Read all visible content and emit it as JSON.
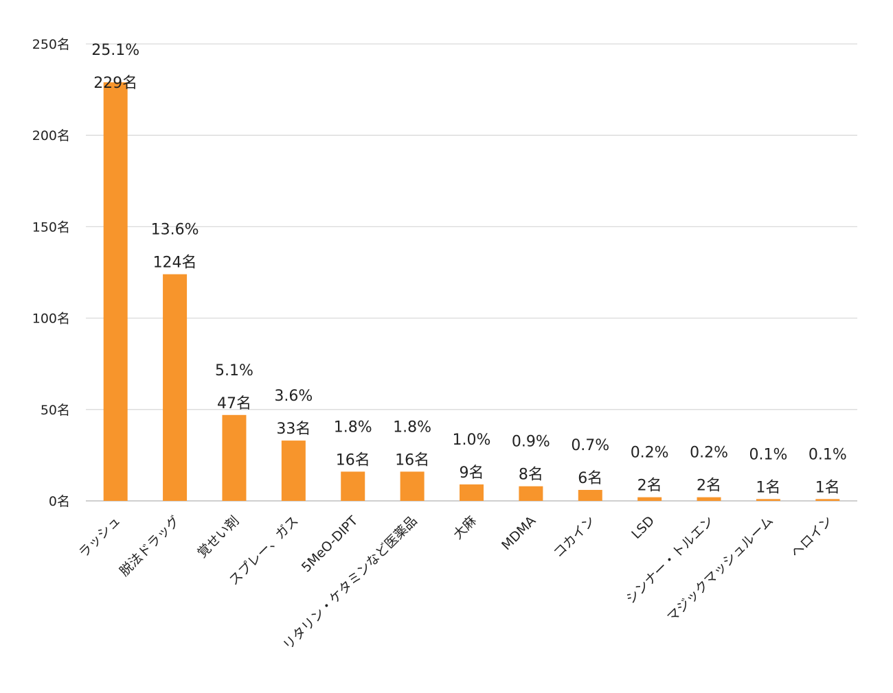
{
  "chart_data": {
    "type": "bar",
    "categories": [
      "ラッシュ",
      "脱法ドラッグ",
      "覚せい剤",
      "スプレー、ガス",
      "5MeO-DIPT",
      "リタリン・ケタミンなど医薬品",
      "大麻",
      "MDMA",
      "コカイン",
      "LSD",
      "シンナー・トルエン",
      "マジックマッシュルーム",
      "ヘロイン"
    ],
    "values": [
      229,
      124,
      47,
      33,
      16,
      16,
      9,
      8,
      6,
      2,
      2,
      1,
      1
    ],
    "value_labels": [
      "229名",
      "124名",
      "47名",
      "33名",
      "16名",
      "16名",
      "9名",
      "8名",
      "6名",
      "2名",
      "2名",
      "1名",
      "1名"
    ],
    "percent_labels": [
      "25.1%",
      "13.6%",
      "5.1%",
      "3.6%",
      "1.8%",
      "1.8%",
      "1.0%",
      "0.9%",
      "0.7%",
      "0.2%",
      "0.2%",
      "0.1%",
      "0.1%"
    ],
    "yticks": [
      0,
      50,
      100,
      150,
      200,
      250
    ],
    "ytick_labels": [
      "0名",
      "50名",
      "100名",
      "150名",
      "200名",
      "250名"
    ],
    "ylim": [
      0,
      250
    ],
    "grid": true,
    "bar_color": "#f7952c"
  }
}
